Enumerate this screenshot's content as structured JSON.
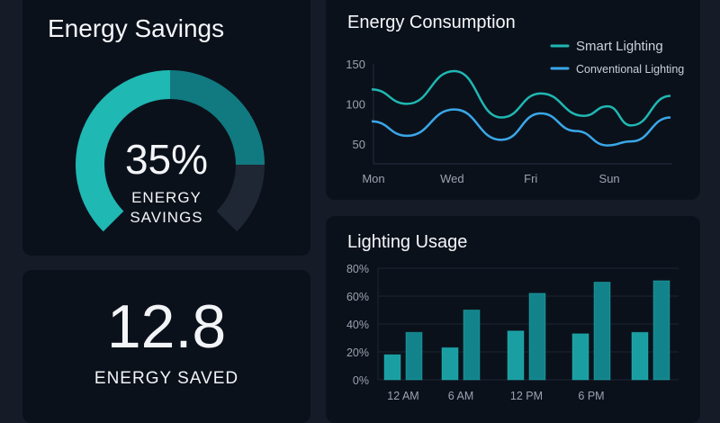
{
  "savings_card": {
    "title": "Energy Savings",
    "percent": "35%",
    "label_line1": "ENERGY",
    "label_line2": "SAVINGS",
    "gauge_value_percent": 35,
    "colors": {
      "primary": "#1fb8b3",
      "secondary": "#117a80",
      "track": "#1f2734"
    }
  },
  "saved_card": {
    "value": "12.8",
    "label": "ENERGY SAVED"
  },
  "chart_data": [
    {
      "type": "line",
      "title": "Energy Consumption",
      "x_ticks": [
        {
          "x": 0,
          "label": "Mon"
        },
        {
          "x": 2,
          "label": "Wed"
        },
        {
          "x": 4,
          "label": "Fri"
        },
        {
          "x": 6,
          "label": "Sun"
        }
      ],
      "y_ticks": [
        50,
        100,
        150
      ],
      "ylim": [
        25,
        150
      ],
      "xlim": [
        0,
        7.6
      ],
      "grid": false,
      "legend": "top-right",
      "series": [
        {
          "name": "Smart Lighting",
          "color": "#1fb8b3",
          "points": [
            [
              0,
              118
            ],
            [
              0.9,
              100
            ],
            [
              2.1,
              141
            ],
            [
              3.3,
              83
            ],
            [
              4.3,
              113
            ],
            [
              5.4,
              85
            ],
            [
              6.0,
              97
            ],
            [
              6.6,
              73
            ],
            [
              7.6,
              110
            ]
          ]
        },
        {
          "name": "Conventional Lighting",
          "color": "#3aa7e8",
          "points": [
            [
              0,
              78
            ],
            [
              0.9,
              60
            ],
            [
              2.1,
              93
            ],
            [
              3.3,
              55
            ],
            [
              4.3,
              88
            ],
            [
              5.2,
              66
            ],
            [
              6.0,
              48
            ],
            [
              6.6,
              53
            ],
            [
              7.6,
              83
            ]
          ]
        }
      ]
    },
    {
      "type": "bar",
      "title": "Lighting Usage",
      "categories": [
        "12 AM",
        "6 AM",
        "12 PM",
        "6 PM",
        ""
      ],
      "y_ticks": [
        "0%",
        "20%",
        "40%",
        "60%",
        "80%"
      ],
      "ylim": [
        0,
        80
      ],
      "grid": true,
      "series": [
        {
          "color": "#1a9ea2",
          "values": [
            18,
            23,
            35,
            33,
            34
          ]
        },
        {
          "color": "#13838b",
          "values": [
            34,
            50,
            62,
            70,
            71
          ]
        }
      ]
    }
  ]
}
